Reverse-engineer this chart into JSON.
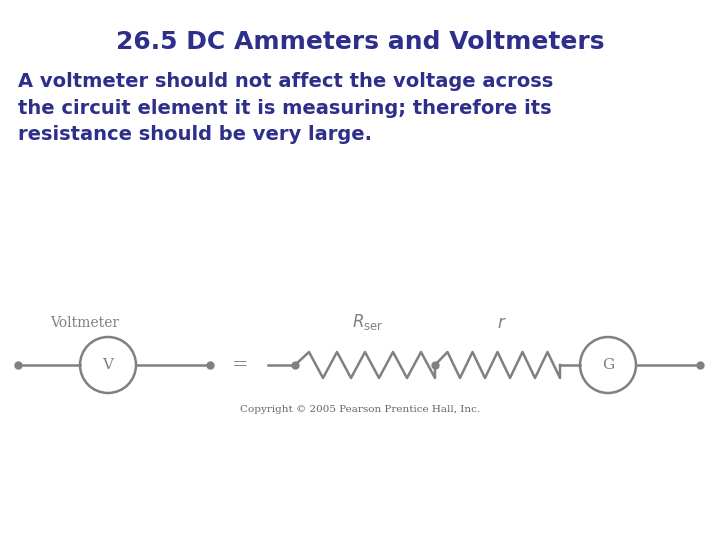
{
  "title": "26.5 DC Ammeters and Voltmeters",
  "title_color": "#2e2e8b",
  "title_fontsize": 18,
  "body_text": "A voltmeter should not affect the voltage across\nthe circuit element it is measuring; therefore its\nresistance should be very large.",
  "body_color": "#2e2e8b",
  "body_fontsize": 14,
  "circuit_color": "#808080",
  "copyright_text": "Copyright © 2005 Pearson Prentice Hall, Inc.",
  "copyright_fontsize": 7.5,
  "bg_color": "#ffffff",
  "voltmeter_label": "Voltmeter",
  "v_label": "V",
  "g_label": "G"
}
